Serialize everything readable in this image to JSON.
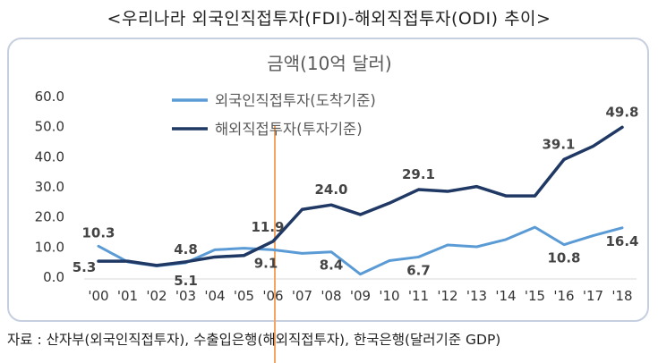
{
  "title": "<우리나라 외국인직접투자(FDI)-해외직접투자(ODI) 추이>",
  "source": "자료 : 산자부(외국인직접투자), 수출입은행(해외직접투자), 한국은행(달러기준 GDP)",
  "chart_data": {
    "type": "line",
    "title": "금액(10억 달러)",
    "xlabel": "",
    "ylabel": "",
    "categories": [
      "'00",
      "'01",
      "'02",
      "'03",
      "'04",
      "'05",
      "'06",
      "'07",
      "'08",
      "'09",
      "'10",
      "'11",
      "'12",
      "'13",
      "'14",
      "'15",
      "'16",
      "'17",
      "'18"
    ],
    "y_ticks": [
      "60.0",
      "50.0",
      "40.0",
      "30.0",
      "20.0",
      "10.0",
      "0.0"
    ],
    "ylim": [
      0,
      60
    ],
    "grid": false,
    "legend_position": "top-center",
    "highlight_category": "'06",
    "series": [
      {
        "name": "외국인직접투자(도착기준)",
        "color": "#5b9bd5",
        "values": [
          10.3,
          5.1,
          3.7,
          4.8,
          9.1,
          9.6,
          9.1,
          7.9,
          8.4,
          1.0,
          5.5,
          6.7,
          10.7,
          10.1,
          12.5,
          16.6,
          10.8,
          13.8,
          16.4
        ],
        "labels": {
          "0": "10.3",
          "3": "4.8",
          "6": "9.1",
          "8": "8.4",
          "11": "6.7",
          "16": "10.8",
          "18": "16.4"
        }
      },
      {
        "name": "해외직접투자(투자기준)",
        "color": "#1f3864",
        "values": [
          5.3,
          5.3,
          3.9,
          5.1,
          6.7,
          7.2,
          11.9,
          22.5,
          24.0,
          20.8,
          24.6,
          29.1,
          28.5,
          30.1,
          27.0,
          27.0,
          39.1,
          43.5,
          49.8
        ],
        "labels": {
          "0": "5.3",
          "3": "5.1",
          "6": "11.9",
          "8": "24.0",
          "11": "29.1",
          "16": "39.1",
          "18": "49.8"
        }
      }
    ],
    "colors": {
      "marker_line": "#f4a460",
      "frame": "#c5cfe0"
    }
  }
}
